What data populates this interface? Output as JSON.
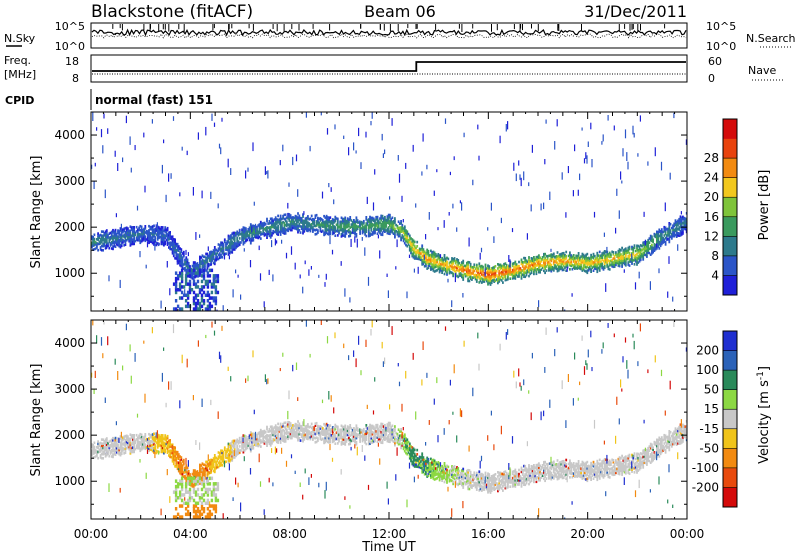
{
  "header": {
    "station": "Blackstone (fitACF)",
    "beam": "Beam 06",
    "date": "31/Dec/2011"
  },
  "noise_panel": {
    "left_label": "N.Sky",
    "left_ticks": [
      "10^5",
      "10^0"
    ],
    "right_ticks": [
      "10^5",
      "10^0"
    ],
    "right_label": "N.Search"
  },
  "freq_panel": {
    "label_line1": "Freq.",
    "label_line2": "[MHz]",
    "left_ticks": [
      "18",
      "8"
    ],
    "right_ticks": [
      "60",
      "0"
    ],
    "right_label": "Nave",
    "step_time_hours": 13.1
  },
  "cpid_panel": {
    "label": "CPID",
    "value": "normal (fast) 151"
  },
  "chart_data": [
    {
      "type": "heatmap",
      "parameter": "power",
      "xlabel": "",
      "ylabel": "Slant Range [km]",
      "xlim": [
        0,
        24
      ],
      "ylim": [
        180,
        4500
      ],
      "yticks": [
        "1000",
        "2000",
        "3000",
        "4000"
      ],
      "colorbar": {
        "label": "Power [dB]",
        "ticks": [
          "4",
          "8",
          "12",
          "16",
          "20",
          "24",
          "28"
        ],
        "range": [
          0,
          30
        ],
        "colors": [
          "#1f20d8",
          "#2b55c8",
          "#2d7a8c",
          "#3a9a5e",
          "#7fc43a",
          "#f2c81e",
          "#f28a10",
          "#e8420d",
          "#d40a0a"
        ]
      },
      "echo_band": {
        "time_hours": [
          0,
          1,
          2,
          3,
          4,
          5,
          6,
          7,
          8,
          9,
          10,
          11,
          12,
          12.5,
          13,
          13.5,
          14,
          15,
          16,
          17,
          18,
          19,
          20,
          21,
          22,
          23,
          24
        ],
        "range_km": [
          1650,
          1750,
          1850,
          1800,
          1000,
          1400,
          1800,
          1950,
          2100,
          2050,
          2000,
          2000,
          2050,
          1900,
          1500,
          1300,
          1200,
          1050,
          950,
          1050,
          1200,
          1250,
          1200,
          1300,
          1400,
          1800,
          2100
        ],
        "peak_power_db": [
          10,
          8,
          8,
          6,
          8,
          8,
          10,
          10,
          10,
          10,
          12,
          12,
          14,
          16,
          20,
          22,
          20,
          24,
          26,
          24,
          22,
          22,
          20,
          20,
          18,
          10,
          8
        ]
      }
    },
    {
      "type": "heatmap",
      "parameter": "velocity",
      "xlabel": "Time UT",
      "ylabel": "Slant Range [km]",
      "xlim": [
        0,
        24
      ],
      "ylim": [
        180,
        4500
      ],
      "yticks": [
        "1000",
        "2000",
        "3000",
        "4000"
      ],
      "xticks": [
        "00:00",
        "04:00",
        "08:00",
        "12:00",
        "16:00",
        "20:00",
        "00:00"
      ],
      "colorbar": {
        "label": "Velocity [m s",
        "label_sup": "-1",
        "label_end": "]",
        "ticks": [
          "200",
          "100",
          "50",
          "15",
          "-15",
          "-50",
          "-100",
          "-200"
        ],
        "colors": [
          "#1f2fd0",
          "#2b62b8",
          "#2a8a5a",
          "#8cd843",
          "#c8c8c8",
          "#f0c41a",
          "#f28a10",
          "#e84a0d",
          "#d40a0a"
        ]
      },
      "echo_band": {
        "time_hours": [
          0,
          2,
          4,
          6,
          8,
          10,
          12,
          13,
          14,
          16,
          18,
          20,
          22,
          24
        ],
        "dominant_velocity_m_s": [
          0,
          0,
          -80,
          0,
          0,
          0,
          0,
          40,
          20,
          0,
          0,
          0,
          0,
          0
        ]
      }
    }
  ]
}
